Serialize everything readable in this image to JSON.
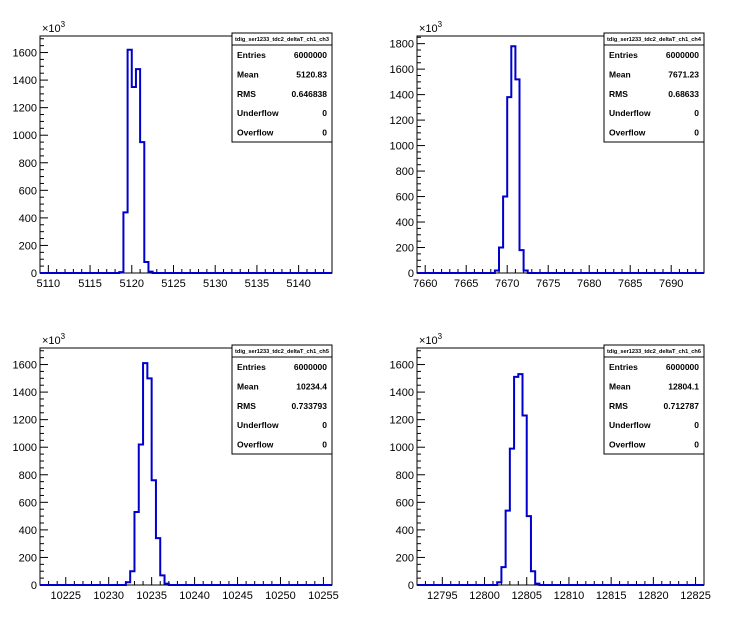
{
  "chart_data": [
    {
      "type": "bar",
      "title": "tdig_ser1233_tdc2_deltaT_ch1_ch3",
      "xlim": [
        5109,
        5144
      ],
      "ylim": [
        0,
        1720
      ],
      "x_ticks": [
        5110,
        5115,
        5120,
        5125,
        5130,
        5135,
        5140
      ],
      "y_ticks": [
        0,
        200,
        400,
        600,
        800,
        1000,
        1200,
        1400,
        1600
      ],
      "y_ticklabels": [
        "0",
        "200",
        "400",
        "600",
        "800",
        "1000",
        "1200",
        "1400",
        "1600"
      ],
      "y_exponent": "10",
      "y_exponent_power": "3",
      "bin_width": 0.5,
      "bins": [
        [
          5118.5,
          6
        ],
        [
          5119,
          440
        ],
        [
          5119.5,
          1620
        ],
        [
          5120,
          1350
        ],
        [
          5120.5,
          1480
        ],
        [
          5121,
          950
        ],
        [
          5121.5,
          80
        ],
        [
          5122,
          10
        ]
      ],
      "stats": [
        [
          "Entries",
          "6000000"
        ],
        [
          "Mean",
          "5120.83"
        ],
        [
          "RMS",
          "0.646838"
        ],
        [
          "Underflow",
          "0"
        ],
        [
          "Overflow",
          "0"
        ]
      ]
    },
    {
      "type": "bar",
      "title": "tdig_ser1233_tdc2_deltaT_ch1_ch4",
      "xlim": [
        7659,
        7694
      ],
      "ylim": [
        0,
        1860
      ],
      "x_ticks": [
        7660,
        7665,
        7670,
        7675,
        7680,
        7685,
        7690
      ],
      "y_ticks": [
        0,
        200,
        400,
        600,
        800,
        1000,
        1200,
        1400,
        1600,
        1800
      ],
      "y_ticklabels": [
        "0",
        "200",
        "400",
        "600",
        "800",
        "1000",
        "1200",
        "1400",
        "1600",
        "1800"
      ],
      "y_exponent": "10",
      "y_exponent_power": "3",
      "bin_width": 0.5,
      "bins": [
        [
          7668.5,
          20
        ],
        [
          7669,
          200
        ],
        [
          7669.5,
          600
        ],
        [
          7670,
          1380
        ],
        [
          7670.5,
          1780
        ],
        [
          7671,
          1520
        ],
        [
          7671.5,
          180
        ],
        [
          7672,
          20
        ]
      ],
      "stats": [
        [
          "Entries",
          "6000000"
        ],
        [
          "Mean",
          "7671.23"
        ],
        [
          "RMS",
          "0.68633"
        ],
        [
          "Underflow",
          "0"
        ],
        [
          "Overflow",
          "0"
        ]
      ]
    },
    {
      "type": "bar",
      "title": "tdig_ser1233_tdc2_deltaT_ch1_ch5",
      "xlim": [
        10222,
        10256
      ],
      "ylim": [
        0,
        1720
      ],
      "x_ticks": [
        10225,
        10230,
        10235,
        10240,
        10245,
        10250,
        10255
      ],
      "y_ticks": [
        0,
        200,
        400,
        600,
        800,
        1000,
        1200,
        1400,
        1600
      ],
      "y_ticklabels": [
        "0",
        "200",
        "400",
        "600",
        "800",
        "1000",
        "1200",
        "1400",
        "1600"
      ],
      "y_exponent": "10",
      "y_exponent_power": "3",
      "bin_width": 0.5,
      "bins": [
        [
          10232,
          20
        ],
        [
          10232.5,
          100
        ],
        [
          10233,
          530
        ],
        [
          10233.5,
          1020
        ],
        [
          10234,
          1610
        ],
        [
          10234.5,
          1500
        ],
        [
          10235,
          760
        ],
        [
          10235.5,
          340
        ],
        [
          10236,
          70
        ],
        [
          10236.5,
          10
        ]
      ],
      "stats": [
        [
          "Entries",
          "6000000"
        ],
        [
          "Mean",
          "10234.4"
        ],
        [
          "RMS",
          "0.733793"
        ],
        [
          "Underflow",
          "0"
        ],
        [
          "Overflow",
          "0"
        ]
      ]
    },
    {
      "type": "bar",
      "title": "tdig_ser1233_tdc2_deltaT_ch1_ch6",
      "xlim": [
        12792,
        12826
      ],
      "ylim": [
        0,
        1720
      ],
      "x_ticks": [
        12795,
        12800,
        12805,
        12810,
        12815,
        12820,
        12825
      ],
      "y_ticks": [
        0,
        200,
        400,
        600,
        800,
        1000,
        1200,
        1400,
        1600
      ],
      "y_ticklabels": [
        "0",
        "200",
        "400",
        "600",
        "800",
        "1000",
        "1200",
        "1400",
        "1600"
      ],
      "y_exponent": "10",
      "y_exponent_power": "3",
      "bin_width": 0.5,
      "bins": [
        [
          12801.5,
          20
        ],
        [
          12802,
          130
        ],
        [
          12802.5,
          540
        ],
        [
          12803,
          990
        ],
        [
          12803.5,
          1510
        ],
        [
          12804,
          1530
        ],
        [
          12804.5,
          1230
        ],
        [
          12805,
          500
        ],
        [
          12805.5,
          100
        ],
        [
          12806,
          10
        ]
      ],
      "stats": [
        [
          "Entries",
          "6000000"
        ],
        [
          "Mean",
          "12804.1"
        ],
        [
          "RMS",
          "0.712787"
        ],
        [
          "Underflow",
          "0"
        ],
        [
          "Overflow",
          "0"
        ]
      ]
    }
  ],
  "colors": {
    "histogram": "#0000cc",
    "axis": "#000000",
    "background": "#ffffff"
  }
}
